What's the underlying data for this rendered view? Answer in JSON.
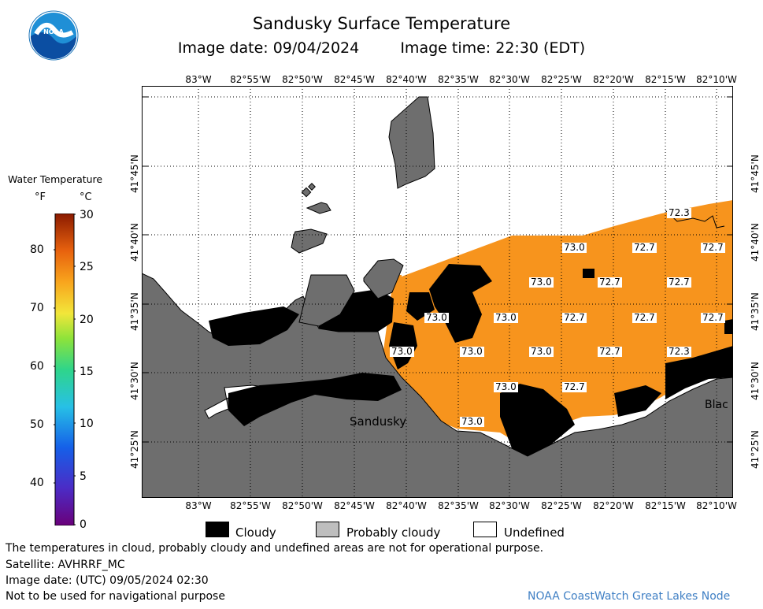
{
  "header": {
    "title": "Sandusky Surface Temperature",
    "image_date": "Image date: 09/04/2024",
    "image_time": "Image time: 22:30 (EDT)",
    "logo_text": "NOAA"
  },
  "legend": {
    "title": "Water Temperature",
    "unit_f": "°F",
    "unit_c": "°C",
    "f_ticks": [
      "80",
      "70",
      "60",
      "50",
      "40"
    ],
    "c_ticks": [
      "30",
      "25",
      "20",
      "15",
      "10",
      "5",
      "0"
    ]
  },
  "map": {
    "lon_labels": [
      "83°W",
      "82°55'W",
      "82°50'W",
      "82°45'W",
      "82°40'W",
      "82°35'W",
      "82°30'W",
      "82°25'W",
      "82°20'W",
      "82°15'W",
      "82°10'W"
    ],
    "lat_labels": [
      "41°45'N",
      "41°40'N",
      "41°35'N",
      "41°30'N",
      "41°25'N"
    ],
    "place_labels": [
      "Sandusky",
      "Blac"
    ],
    "temperatures": [
      "72.3",
      "73.0",
      "72.7",
      "72.7",
      "73.0",
      "72.7",
      "72.7",
      "73.0",
      "73.0",
      "72.7",
      "72.7",
      "72.7",
      "73.0",
      "73.0",
      "73.0",
      "72.7",
      "72.3",
      "73.0",
      "72.7",
      "73.0"
    ]
  },
  "key": {
    "cloudy": "Cloudy",
    "probably_cloudy": "Probably cloudy",
    "undefined": "Undefined"
  },
  "footer": {
    "line1": "The temperatures in cloud, probably cloudy and undefined areas are not for operational purpose.",
    "line2": "Satellite: AVHRRF_MC",
    "line3": "Image date: (UTC) 09/05/2024  02:30",
    "line4": "Not to be used for navigational purpose",
    "credit": "NOAA CoastWatch Great Lakes Node"
  },
  "colors": {
    "water_temp": "#f7941d",
    "land": "#6e6e6e",
    "probably_cloudy": "#bebebe",
    "cloudy": "#000000",
    "undefined": "#ffffff",
    "credit": "#3f7fc4"
  }
}
